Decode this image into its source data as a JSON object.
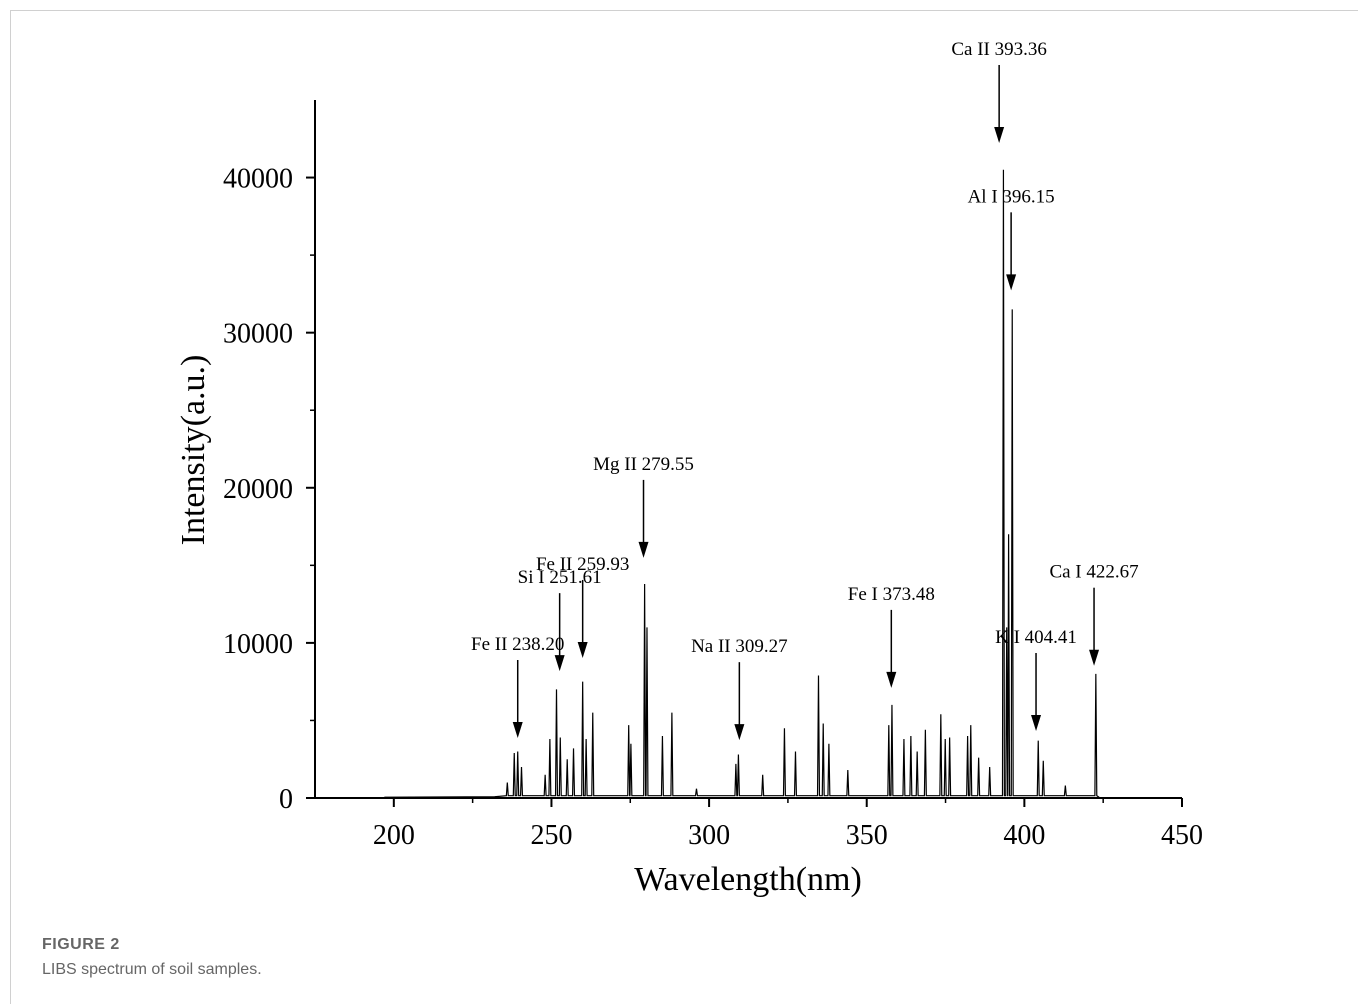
{
  "figure": {
    "number": "FIGURE 2",
    "caption": "LIBS spectrum of soil samples."
  },
  "chart_data": {
    "type": "line",
    "x_label": "Wavelength(nm)",
    "y_label": "Intensity(a.u.)",
    "color": "#000000",
    "xlim": [
      175,
      450
    ],
    "xticks": [
      200,
      250,
      300,
      350,
      400,
      450
    ],
    "ylim": [
      0,
      45000
    ],
    "yticks": [
      0,
      10000,
      20000,
      30000,
      40000
    ],
    "x": [
      197,
      232,
      235.7,
      236,
      236.3,
      237.9,
      238.2,
      238.5,
      239,
      239.3,
      239.6,
      240.2,
      240.5,
      240.8,
      247.7,
      248,
      248.3,
      249.2,
      249.5,
      249.8,
      251.3,
      251.6,
      251.9,
      252.5,
      252.8,
      253.1,
      254.7,
      255,
      255.3,
      256.7,
      257,
      257.3,
      259.6,
      259.9,
      260.2,
      260.7,
      261,
      261.3,
      262.8,
      263.1,
      263.4,
      274.2,
      274.5,
      274.8,
      274.9,
      275.2,
      275.5,
      279.25,
      279.55,
      279.85,
      280,
      280.3,
      280.6,
      284.9,
      285.2,
      285.5,
      287.9,
      288.2,
      288.5,
      295.7,
      296,
      296.3,
      308.2,
      308.5,
      308.8,
      309,
      309.3,
      309.6,
      316.7,
      317,
      317.3,
      323.6,
      323.9,
      324.2,
      327.1,
      327.4,
      327.7,
      334.4,
      334.7,
      335,
      335.9,
      336.2,
      336.5,
      337.7,
      338,
      338.3,
      343.7,
      344,
      344.3,
      356.7,
      357,
      357.3,
      357.7,
      358,
      358.3,
      361.5,
      361.8,
      362.1,
      363.7,
      364,
      364.3,
      365.7,
      366,
      366.3,
      368.3,
      368.6,
      368.9,
      373.2,
      373.5,
      373.8,
      374.6,
      374.9,
      375.2,
      376,
      376.3,
      376.6,
      381.7,
      382,
      382.3,
      382.7,
      383,
      383.3,
      385.2,
      385.5,
      385.8,
      388.7,
      389,
      389.3,
      393.06,
      393.36,
      393.66,
      394.1,
      394.4,
      394.7,
      394.75,
      395,
      395.3,
      395.85,
      396.15,
      396.45,
      404.1,
      404.4,
      404.7,
      405.7,
      406,
      406.3,
      412.7,
      413,
      413.3,
      422.37,
      422.67,
      422.97,
      424
    ],
    "values": [
      50,
      80,
      150,
      1000,
      150,
      150,
      2900,
      150,
      150,
      3000,
      150,
      150,
      2000,
      150,
      150,
      1500,
      150,
      150,
      3800,
      150,
      150,
      7000,
      150,
      150,
      3900,
      150,
      150,
      2500,
      150,
      150,
      3200,
      150,
      150,
      7500,
      150,
      150,
      3800,
      150,
      150,
      5500,
      150,
      150,
      4700,
      150,
      150,
      3500,
      150,
      150,
      13800,
      150,
      150,
      11000,
      150,
      150,
      4000,
      150,
      150,
      5500,
      150,
      150,
      600,
      150,
      150,
      2200,
      150,
      150,
      2800,
      150,
      150,
      1500,
      150,
      150,
      4500,
      150,
      150,
      3000,
      150,
      150,
      7900,
      150,
      150,
      4800,
      150,
      150,
      3500,
      150,
      150,
      1800,
      150,
      150,
      4700,
      150,
      150,
      6000,
      150,
      150,
      3800,
      150,
      150,
      4000,
      150,
      150,
      3000,
      150,
      150,
      4400,
      150,
      150,
      5400,
      150,
      150,
      3800,
      150,
      150,
      3900,
      150,
      150,
      4000,
      150,
      150,
      4700,
      150,
      150,
      2600,
      150,
      150,
      2000,
      150,
      150,
      40500,
      150,
      150,
      11000,
      150,
      150,
      17000,
      150,
      150,
      31500,
      150,
      150,
      3700,
      150,
      150,
      2400,
      150,
      150,
      800,
      150,
      150,
      8000,
      150,
      0
    ],
    "annotations": [
      {
        "text": "Fe II 238.20",
        "x": 239.3,
        "y": 3740
      },
      {
        "text": "Si I 251.61",
        "x": 252.6,
        "y": 8050
      },
      {
        "text": "Fe II 259.93",
        "x": 259.9,
        "y": 8900
      },
      {
        "text": "Mg II 279.55",
        "x": 279.2,
        "y": 15350
      },
      {
        "text": "Na II 309.27",
        "x": 309.6,
        "y": 3600
      },
      {
        "text": "Fe I 373.48",
        "x": 357.8,
        "y": 6970
      },
      {
        "text": "Ca II 393.36",
        "x": 392,
        "y": 42100
      },
      {
        "text": "Al I 396.15",
        "x": 395.8,
        "y": 32600
      },
      {
        "text": "K I 404.41",
        "x": 403.7,
        "y": 4190
      },
      {
        "text": "Ca I 422.67",
        "x": 422.1,
        "y": 8400
      }
    ]
  }
}
